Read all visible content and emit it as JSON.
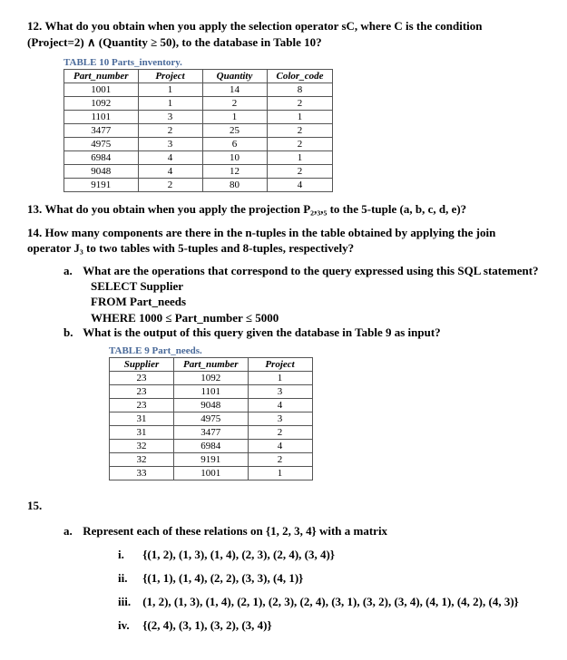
{
  "q12": {
    "num": "12.",
    "text_a": "What do you obtain when you apply the selection operator s",
    "text_c": "C",
    "text_b": ", where C is the condition (Project=2) ∧ (Quantity ≥ 50), to the database in Table 10?"
  },
  "table10": {
    "title_prefix": "TABLE 10",
    "title_name": "Parts_inventory.",
    "columns": [
      "Part_number",
      "Project",
      "Quantity",
      "Color_code"
    ],
    "rows": [
      [
        "1001",
        "1",
        "14",
        "8"
      ],
      [
        "1092",
        "1",
        "2",
        "2"
      ],
      [
        "1101",
        "3",
        "1",
        "1"
      ],
      [
        "3477",
        "2",
        "25",
        "2"
      ],
      [
        "4975",
        "3",
        "6",
        "2"
      ],
      [
        "6984",
        "4",
        "10",
        "1"
      ],
      [
        "9048",
        "4",
        "12",
        "2"
      ],
      [
        "9191",
        "2",
        "80",
        "4"
      ]
    ]
  },
  "q13": {
    "num": "13.",
    "text": "What do you obtain when you apply the projection P₂,₃,₅ to the 5-tuple (a, b, c, d, e)?"
  },
  "q14": {
    "num": "14.",
    "text": "How many components are there in the n-tuples in the table obtained by applying the join operator J₃ to two tables with 5-tuples and 8-tuples, respectively?",
    "a_label": "a.",
    "a_text": "What are the operations that correspond to the query expressed using this SQL statement?",
    "sql1": "SELECT Supplier",
    "sql2": "FROM Part_needs",
    "sql3": "WHERE 1000 ≤ Part_number ≤ 5000",
    "b_label": "b.",
    "b_text": "What is the output of this query given the database in Table 9 as input?"
  },
  "table9": {
    "title_prefix": "TABLE 9",
    "title_name": "Part_needs.",
    "columns": [
      "Supplier",
      "Part_number",
      "Project"
    ],
    "rows": [
      [
        "23",
        "1092",
        "1"
      ],
      [
        "23",
        "1101",
        "3"
      ],
      [
        "23",
        "9048",
        "4"
      ],
      [
        "31",
        "4975",
        "3"
      ],
      [
        "31",
        "3477",
        "2"
      ],
      [
        "32",
        "6984",
        "4"
      ],
      [
        "32",
        "9191",
        "2"
      ],
      [
        "33",
        "1001",
        "1"
      ]
    ]
  },
  "q15": {
    "num": "15.",
    "a_label": "a.",
    "a_text": "Represent each of these relations on {1, 2, 3, 4} with a matrix",
    "i_label": "i.",
    "i_text": "{(1, 2), (1, 3), (1, 4), (2, 3), (2, 4), (3, 4)}",
    "ii_label": "ii.",
    "ii_text": "{(1, 1), (1, 4), (2, 2), (3, 3), (4, 1)}",
    "iii_label": "iii.",
    "iii_text": "(1, 2), (1, 3), (1, 4), (2, 1), (2, 3), (2, 4), (3, 1), (3, 2),  (3, 4), (4, 1), (4, 2), (4, 3)}",
    "iv_label": "iv.",
    "iv_text": "{(2, 4), (3, 1), (3, 2), (3, 4)}"
  }
}
